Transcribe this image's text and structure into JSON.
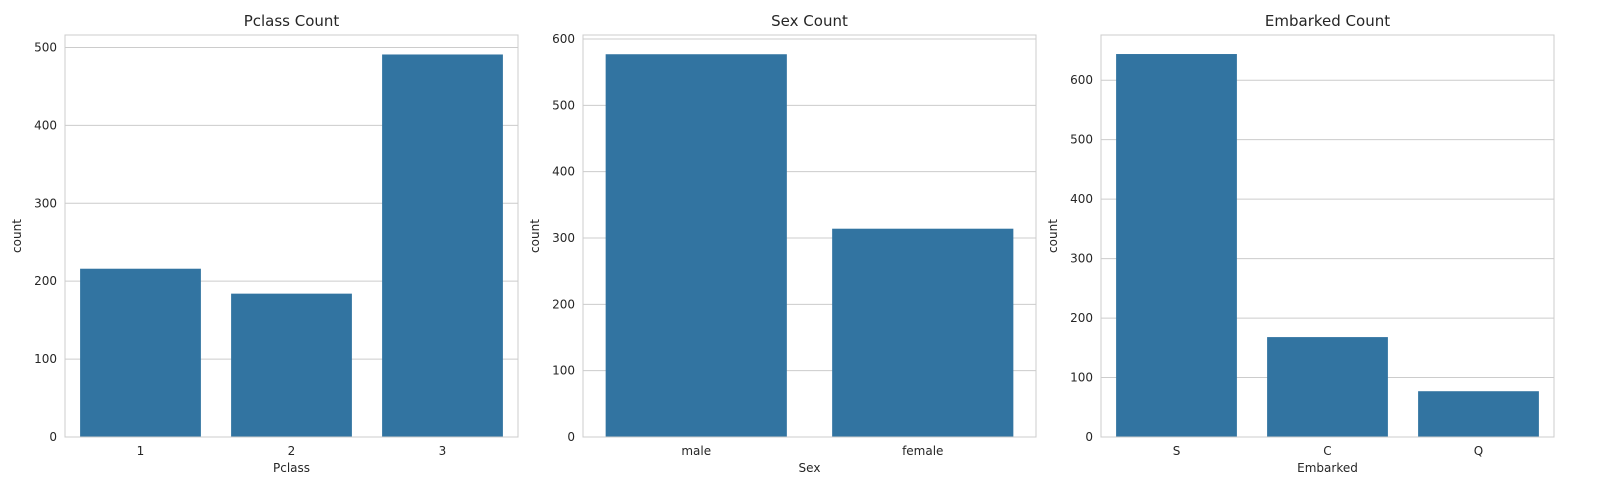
{
  "chart_data": [
    {
      "type": "bar",
      "title": "Pclass Count",
      "xlabel": "Pclass",
      "ylabel": "count",
      "categories": [
        "1",
        "2",
        "3"
      ],
      "values": [
        216,
        184,
        491
      ],
      "ylim": [
        0,
        516
      ],
      "yticks": [
        0,
        100,
        200,
        300,
        400,
        500
      ],
      "grid": true,
      "color": "#3274a1"
    },
    {
      "type": "bar",
      "title": "Sex Count",
      "xlabel": "Sex",
      "ylabel": "count",
      "categories": [
        "male",
        "female"
      ],
      "values": [
        577,
        314
      ],
      "ylim": [
        0,
        606
      ],
      "yticks": [
        0,
        100,
        200,
        300,
        400,
        500,
        600
      ],
      "grid": true,
      "color": "#3274a1"
    },
    {
      "type": "bar",
      "title": "Embarked Count",
      "xlabel": "Embarked",
      "ylabel": "count",
      "categories": [
        "S",
        "C",
        "Q"
      ],
      "values": [
        644,
        168,
        77
      ],
      "ylim": [
        0,
        676
      ],
      "yticks": [
        0,
        100,
        200,
        300,
        400,
        500,
        600
      ],
      "grid": true,
      "color": "#3274a1"
    }
  ]
}
